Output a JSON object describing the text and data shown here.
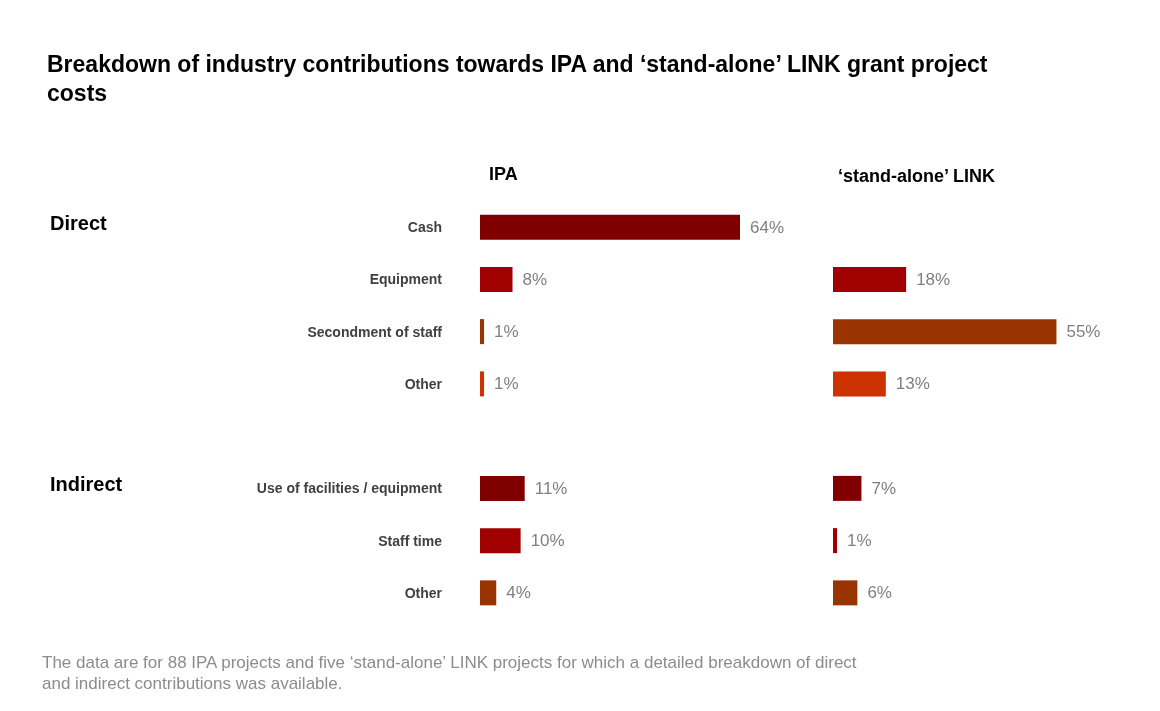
{
  "chart_data": [
    {
      "type": "bar",
      "orientation": "horizontal",
      "title": "Breakdown of industry contributions towards IPA and ‘stand-alone’ LINK grant project costs",
      "subtitle": "IPA",
      "tick_labels": "y",
      "categories": [
        "Cash",
        "Equipment",
        "Secondment of staff",
        "Other",
        null,
        "Use of facilities / equipment",
        "Staff time",
        "Other"
      ],
      "values": [
        64,
        8,
        1,
        1,
        null,
        11,
        10,
        4
      ],
      "value_labels": [
        "64%",
        "8%",
        "1%",
        "1%",
        null,
        "11%",
        "10%",
        "4%"
      ],
      "colors": [
        "#800000",
        "#a00000",
        "#993300",
        "#cc3300",
        null,
        "#800000",
        "#a00000",
        "#993300"
      ],
      "annotations": [
        "Direct",
        "Indirect",
        "The data are for 88 IPA projects and five ‘stand-alone’ LINK projects for which a detailed breakdown of direct and indirect contributions was available."
      ]
    },
    {
      "type": "bar",
      "orientation": "horizontal",
      "title": "‘stand-alone’ LINK",
      "tick_labels": false,
      "categories": [
        null,
        null,
        null,
        null,
        null,
        null,
        null,
        null
      ],
      "values": [
        null,
        18,
        55,
        13,
        null,
        7,
        1,
        6
      ],
      "value_labels": [
        null,
        "18%",
        "55%",
        "13%",
        null,
        "7%",
        "1%",
        "6%"
      ],
      "colors": [
        null,
        "#a00000",
        "#993300",
        "#cc3300",
        null,
        "#800000",
        "#a00000",
        "#993300"
      ]
    }
  ]
}
